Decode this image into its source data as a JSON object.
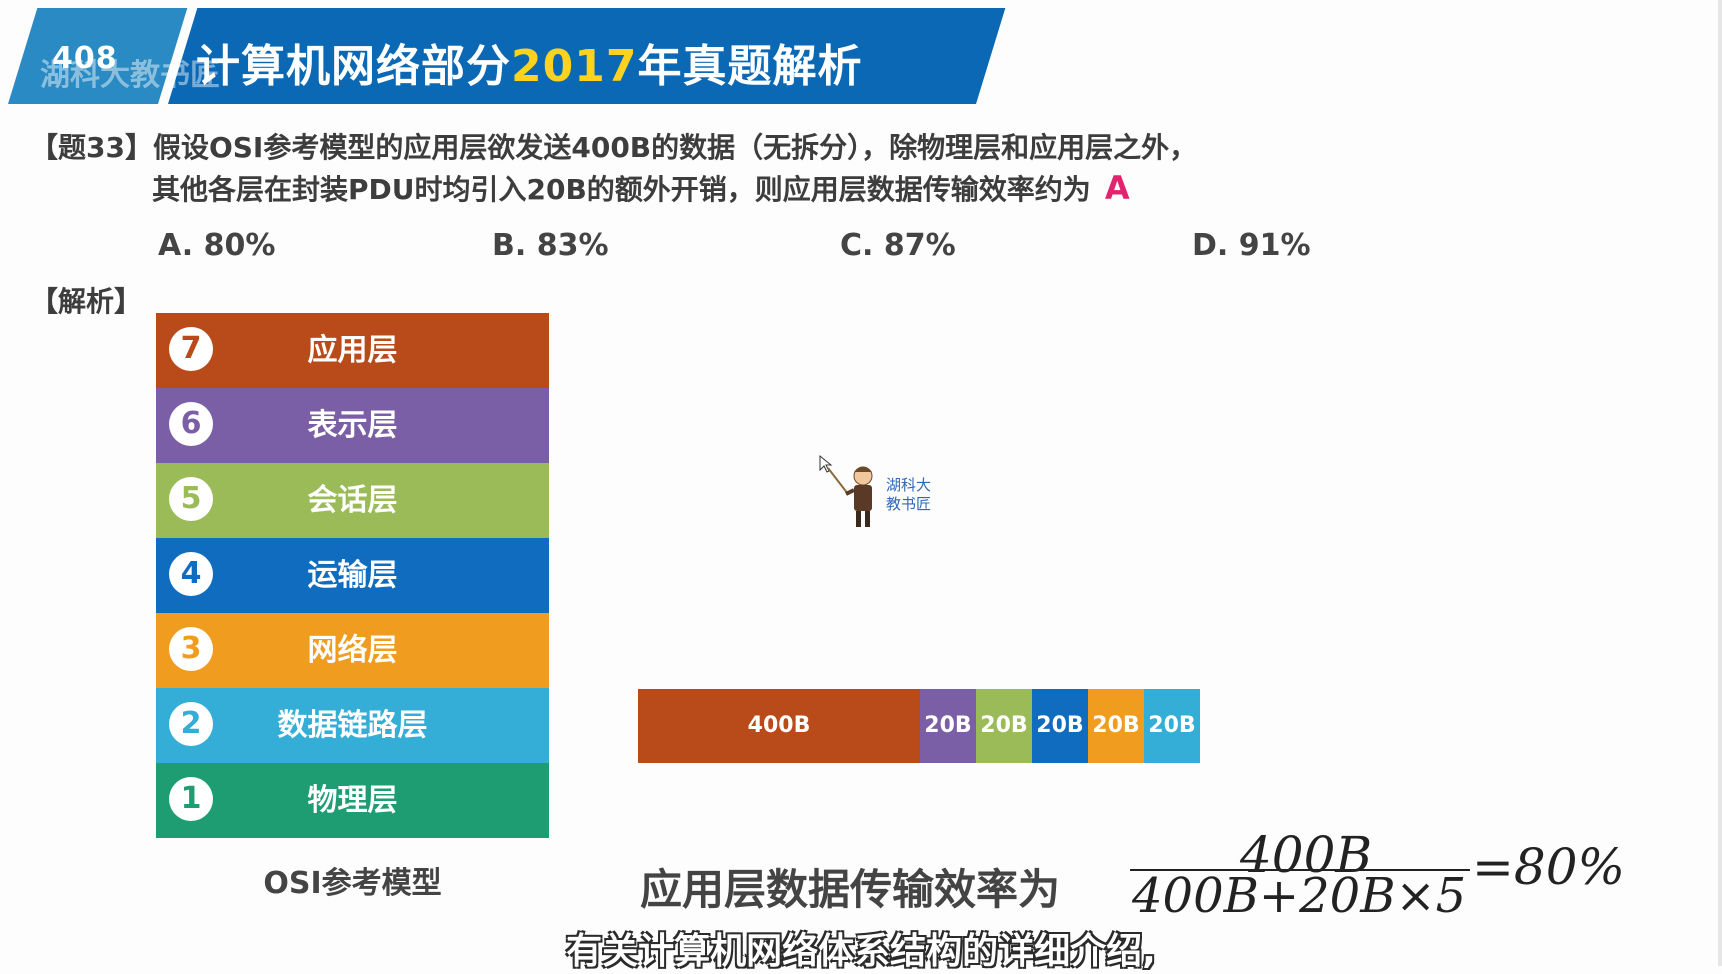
{
  "banner": {
    "tag": "408",
    "watermark": "湖科大教书匠",
    "title_prefix": "计算机网络部分",
    "title_year": "2017",
    "title_suffix": "年真题解析"
  },
  "question": {
    "line1": "【题33】假设OSI参考模型的应用层欲发送400B的数据（无拆分），除物理层和应用层之外，",
    "line2": "其他各层在封装PDU时均引入20B的额外开销，则应用层数据传输效率约为",
    "answer": "A",
    "options": [
      "A. 80%",
      "B. 83%",
      "C. 87%",
      "D. 91%"
    ]
  },
  "analysis_label": "【解析】",
  "osi": {
    "caption": "OSI参考模型",
    "layers": [
      {
        "num": "7",
        "name": "应用层",
        "color": "#b94a1a"
      },
      {
        "num": "6",
        "name": "表示层",
        "color": "#7b5fa6"
      },
      {
        "num": "5",
        "name": "会话层",
        "color": "#9bbb59"
      },
      {
        "num": "4",
        "name": "运输层",
        "color": "#0f6cbe"
      },
      {
        "num": "3",
        "name": "网络层",
        "color": "#f09d1f"
      },
      {
        "num": "2",
        "name": "数据链路层",
        "color": "#34aed6"
      },
      {
        "num": "1",
        "name": "物理层",
        "color": "#1e9d73"
      }
    ]
  },
  "packet": {
    "segments": [
      {
        "label": "400B",
        "size": 400,
        "color": "#b94a1a"
      },
      {
        "label": "20B",
        "size": 20,
        "color": "#7b5fa6"
      },
      {
        "label": "20B",
        "size": 20,
        "color": "#9bbb59"
      },
      {
        "label": "20B",
        "size": 20,
        "color": "#0f6cbe"
      },
      {
        "label": "20B",
        "size": 20,
        "color": "#f09d1f"
      },
      {
        "label": "20B",
        "size": 20,
        "color": "#34aed6"
      }
    ]
  },
  "mascot": {
    "line1": "湖科大",
    "line2": "教书匠"
  },
  "formula": {
    "label": "应用层数据传输效率为",
    "numerator": "400B",
    "denominator": "400B+20B×5",
    "result": "=80%"
  },
  "subtitle": "有关计算机网络体系结构的详细介绍,"
}
